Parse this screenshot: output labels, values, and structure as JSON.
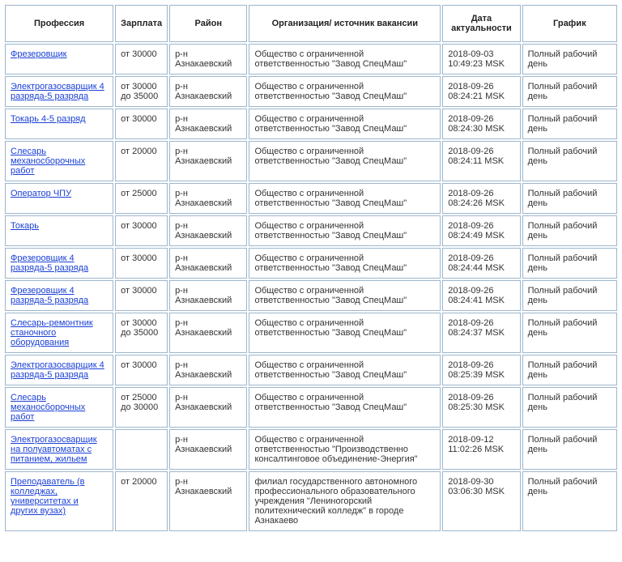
{
  "table": {
    "headers": {
      "profession": "Профессия",
      "salary": "Зарплата",
      "district": "Район",
      "org": "Организация/ источник вакансии",
      "date": "Дата актуальности",
      "schedule": "График"
    },
    "rows": [
      {
        "profession": "Фрезеровщик",
        "salary": "от 30000",
        "district": "р-н Азнакаевский",
        "org": "Общество с ограниченной ответственностью \"Завод СпецМаш\"",
        "date": "2018-09-03 10:49:23 MSK",
        "schedule": "Полный рабочий день"
      },
      {
        "profession": "Электрогазосварщик 4 разряда-5 разряда",
        "salary": "от 30000 до 35000",
        "district": "р-н Азнакаевский",
        "org": "Общество с ограниченной ответственностью \"Завод СпецМаш\"",
        "date": "2018-09-26 08:24:21 MSK",
        "schedule": "Полный рабочий день"
      },
      {
        "profession": "Токарь 4-5 разряд",
        "salary": "от 30000",
        "district": "р-н Азнакаевский",
        "org": "Общество с ограниченной ответственностью \"Завод СпецМаш\"",
        "date": "2018-09-26 08:24:30 MSK",
        "schedule": "Полный рабочий день"
      },
      {
        "profession": "Слесарь механосборочных работ",
        "salary": "от 20000",
        "district": "р-н Азнакаевский",
        "org": "Общество с ограниченной ответственностью \"Завод СпецМаш\"",
        "date": "2018-09-26 08:24:11 MSK",
        "schedule": "Полный рабочий день"
      },
      {
        "profession": "Оператор ЧПУ",
        "salary": "от 25000",
        "district": "р-н Азнакаевский",
        "org": "Общество с ограниченной ответственностью \"Завод СпецМаш\"",
        "date": "2018-09-26 08:24:26 MSK",
        "schedule": "Полный рабочий день"
      },
      {
        "profession": "Токарь",
        "salary": "от 30000",
        "district": "р-н Азнакаевский",
        "org": "Общество с ограниченной ответственностью \"Завод СпецМаш\"",
        "date": "2018-09-26 08:24:49 MSK",
        "schedule": "Полный рабочий день"
      },
      {
        "profession": "Фрезеровщик 4 разряда-5 разряда",
        "salary": "от 30000",
        "district": "р-н Азнакаевский",
        "org": "Общество с ограниченной ответственностью \"Завод СпецМаш\"",
        "date": "2018-09-26 08:24:44 MSK",
        "schedule": "Полный рабочий день"
      },
      {
        "profession": "Фрезеровщик 4 разряда-5 разряда",
        "salary": "от 30000",
        "district": "р-н Азнакаевский",
        "org": "Общество с ограниченной ответственностью \"Завод СпецМаш\"",
        "date": "2018-09-26 08:24:41 MSK",
        "schedule": "Полный рабочий день"
      },
      {
        "profession": "Слесарь-ремонтник станочного оборудования",
        "salary": "от 30000 до 35000",
        "district": "р-н Азнакаевский",
        "org": "Общество с ограниченной ответственностью \"Завод СпецМаш\"",
        "date": "2018-09-26 08:24:37 MSK",
        "schedule": "Полный рабочий день"
      },
      {
        "profession": "Электрогазосварщик 4 разряда-5 разряда",
        "salary": "от 30000",
        "district": "р-н Азнакаевский",
        "org": "Общество с ограниченной ответственностью \"Завод СпецМаш\"",
        "date": "2018-09-26 08:25:39 MSK",
        "schedule": "Полный рабочий день"
      },
      {
        "profession": "Слесарь механосборочных работ",
        "salary": "от 25000 до 30000",
        "district": "р-н Азнакаевский",
        "org": "Общество с ограниченной ответственностью \"Завод СпецМаш\"",
        "date": "2018-09-26 08:25:30 MSK",
        "schedule": "Полный рабочий день"
      },
      {
        "profession": "Электрогазосварщик на полуавтоматах с питанием, жильем",
        "salary": "",
        "district": "р-н Азнакаевский",
        "org": "Общество с ограниченной ответственностью \"Производственно консалтинговое объединение-Энергия\"",
        "date": "2018-09-12 11:02:26 MSK",
        "schedule": "Полный рабочий день"
      },
      {
        "profession": "Преподаватель (в колледжах, университетах и других вузах)",
        "salary": "от 20000",
        "district": "р-н Азнакаевский",
        "org": "филиал государственного автономного профессионального образовательного учреждения \"Лениногорский политехнический колледж\" в городе Азнакаево",
        "date": "2018-09-30 03:06:30 MSK",
        "schedule": "Полный рабочий день"
      }
    ]
  },
  "colors": {
    "border": "#9db6cc",
    "link": "#1a3fd6",
    "background": "#ffffff"
  }
}
